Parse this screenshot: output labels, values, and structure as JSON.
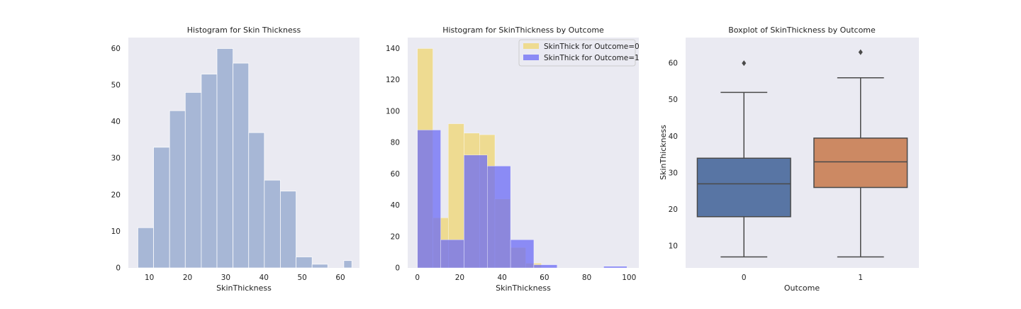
{
  "chart_data": [
    {
      "type": "bar",
      "title": "Histogram for Skin Thickness",
      "xlabel": "SkinThickness",
      "ylabel": "",
      "xlim": [
        4.5,
        65
      ],
      "ylim": [
        0,
        63
      ],
      "xticks": [
        10,
        20,
        30,
        40,
        50,
        60
      ],
      "yticks": [
        0,
        10,
        20,
        30,
        40,
        50,
        60
      ],
      "grid": false,
      "series": [
        {
          "color": "#a7b7d6",
          "bins": [
            {
              "x0": 7.0,
              "x1": 11.1,
              "y": 11
            },
            {
              "x0": 11.1,
              "x1": 15.3,
              "y": 33
            },
            {
              "x0": 15.3,
              "x1": 19.4,
              "y": 43
            },
            {
              "x0": 19.4,
              "x1": 23.6,
              "y": 48
            },
            {
              "x0": 23.6,
              "x1": 27.7,
              "y": 53
            },
            {
              "x0": 27.7,
              "x1": 31.9,
              "y": 60
            },
            {
              "x0": 31.9,
              "x1": 36.0,
              "y": 56
            },
            {
              "x0": 36.0,
              "x1": 40.1,
              "y": 37
            },
            {
              "x0": 40.1,
              "x1": 44.3,
              "y": 24
            },
            {
              "x0": 44.3,
              "x1": 48.4,
              "y": 21
            },
            {
              "x0": 48.4,
              "x1": 52.6,
              "y": 3
            },
            {
              "x0": 52.6,
              "x1": 56.7,
              "y": 1
            },
            {
              "x0": 56.7,
              "x1": 60.9,
              "y": 0
            },
            {
              "x0": 60.9,
              "x1": 63.0,
              "y": 2
            }
          ]
        }
      ]
    },
    {
      "type": "bar",
      "title": "Histogram for SkinThickness by Outcome",
      "xlabel": "SkinThickness",
      "ylabel": "",
      "xlim": [
        -4.6,
        104.6
      ],
      "ylim": [
        0,
        147
      ],
      "xticks": [
        0,
        20,
        40,
        60,
        80,
        100
      ],
      "yticks": [
        0,
        20,
        40,
        60,
        80,
        100,
        120,
        140
      ],
      "grid": false,
      "legend_position": "top-right",
      "series": [
        {
          "name": "SkinThick for Outcome=0",
          "color": "#f0d050",
          "opacity": 0.6,
          "bins": [
            {
              "x0": 0,
              "x1": 7.3,
              "y": 140
            },
            {
              "x0": 7.3,
              "x1": 14.6,
              "y": 32
            },
            {
              "x0": 14.6,
              "x1": 22.0,
              "y": 92
            },
            {
              "x0": 22.0,
              "x1": 29.3,
              "y": 86
            },
            {
              "x0": 29.3,
              "x1": 36.6,
              "y": 85
            },
            {
              "x0": 36.6,
              "x1": 43.9,
              "y": 44
            },
            {
              "x0": 43.9,
              "x1": 51.2,
              "y": 13
            },
            {
              "x0": 51.2,
              "x1": 58.6,
              "y": 3
            },
            {
              "x0": 58.6,
              "x1": 65.9,
              "y": 0
            },
            {
              "x0": 65.9,
              "x1": 73.2,
              "y": 0
            },
            {
              "x0": 73.2,
              "x1": 80.5,
              "y": 0
            },
            {
              "x0": 80.5,
              "x1": 87.8,
              "y": 0
            },
            {
              "x0": 87.8,
              "x1": 95.1,
              "y": 0
            },
            {
              "x0": 95.1,
              "x1": 99.0,
              "y": 0
            }
          ]
        },
        {
          "name": "SkinThick for Outcome=1",
          "color": "#6b6bf5",
          "opacity": 0.75,
          "bins": [
            {
              "x0": 0,
              "x1": 11.0,
              "y": 88
            },
            {
              "x0": 11.0,
              "x1": 22.0,
              "y": 18
            },
            {
              "x0": 22.0,
              "x1": 33.0,
              "y": 72
            },
            {
              "x0": 33.0,
              "x1": 44.0,
              "y": 65
            },
            {
              "x0": 44.0,
              "x1": 55.0,
              "y": 18
            },
            {
              "x0": 55.0,
              "x1": 66.0,
              "y": 2
            },
            {
              "x0": 66.0,
              "x1": 77.0,
              "y": 0
            },
            {
              "x0": 77.0,
              "x1": 88.0,
              "y": 0
            },
            {
              "x0": 88.0,
              "x1": 99.0,
              "y": 1
            }
          ]
        }
      ]
    },
    {
      "type": "box",
      "title": "Boxplot of SkinThickness by Outcome",
      "xlabel": "Outcome",
      "ylabel": "SkinThickness",
      "categories": [
        "0",
        "1"
      ],
      "ylim": [
        4,
        67
      ],
      "yticks": [
        10,
        20,
        30,
        40,
        50,
        60
      ],
      "grid": false,
      "boxes": [
        {
          "category": "0",
          "color": "#5875a4",
          "whisker_low": 7,
          "q1": 18,
          "median": 27,
          "q3": 34,
          "whisker_high": 52,
          "outliers": [
            60
          ]
        },
        {
          "category": "1",
          "color": "#cc8963",
          "whisker_low": 7,
          "q1": 26,
          "median": 33,
          "q3": 39.5,
          "whisker_high": 56,
          "outliers": [
            63
          ]
        }
      ]
    }
  ]
}
